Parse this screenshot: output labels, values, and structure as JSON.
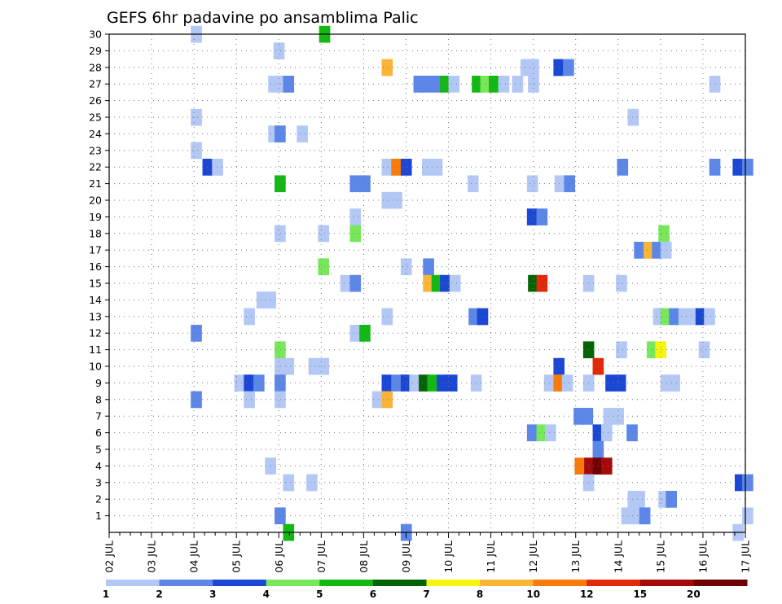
{
  "chart_data": {
    "type": "heatmap",
    "title": "GEFS 6hr padavine po ansamblima Palic",
    "xlabel": "",
    "ylabel": "",
    "x_ticks": [
      "02 JUL",
      "03 JUL",
      "04 JUL",
      "05 JUL",
      "06 JUL",
      "07 JUL",
      "08 JUL",
      "09 JUL",
      "10 JUL",
      "11 JUL",
      "12 JUL",
      "13 JUL",
      "14 JUL",
      "15 JUL",
      "16 JUL",
      "17 JUL"
    ],
    "y_ticks": [
      "1",
      "2",
      "3",
      "4",
      "5",
      "6",
      "7",
      "8",
      "9",
      "10",
      "11",
      "12",
      "13",
      "14",
      "15",
      "16",
      "17",
      "18",
      "19",
      "20",
      "21",
      "22",
      "23",
      "24",
      "25",
      "26",
      "27",
      "28",
      "29",
      "30"
    ],
    "xlim": [
      0,
      60
    ],
    "ylim": [
      0,
      30
    ],
    "x_step_hours": 6,
    "y_unit": "ensemble member",
    "grid": true,
    "legend_placement": "bottom",
    "colorbar": {
      "labels": [
        "1",
        "2",
        "3",
        "4",
        "5",
        "6",
        "7",
        "8",
        "10",
        "12",
        "15",
        "20"
      ],
      "colors": [
        "#b3c8f5",
        "#5c86e8",
        "#1a48d4",
        "#78e85a",
        "#14b814",
        "#046404",
        "#f5f50e",
        "#fab437",
        "#fa7a0a",
        "#e02a0a",
        "#a50a0a",
        "#6e0000"
      ]
    },
    "cells": [
      {
        "x": 7.7,
        "y": 30,
        "v": 1
      },
      {
        "x": 19.8,
        "y": 30,
        "v": 5
      },
      {
        "x": 15.5,
        "y": 29,
        "v": 1
      },
      {
        "x": 25.7,
        "y": 28,
        "v": 8
      },
      {
        "x": 38.8,
        "y": 28,
        "v": 1
      },
      {
        "x": 39.5,
        "y": 28,
        "v": 1
      },
      {
        "x": 41.9,
        "y": 28,
        "v": 3
      },
      {
        "x": 42.8,
        "y": 28,
        "v": 2
      },
      {
        "x": 15,
        "y": 27,
        "v": 1
      },
      {
        "x": 15.8,
        "y": 27,
        "v": 1
      },
      {
        "x": 16.4,
        "y": 27,
        "v": 2
      },
      {
        "x": 28.7,
        "y": 27,
        "v": 2
      },
      {
        "x": 29.5,
        "y": 27,
        "v": 2
      },
      {
        "x": 30.4,
        "y": 27,
        "v": 2
      },
      {
        "x": 31.2,
        "y": 27,
        "v": 5
      },
      {
        "x": 32,
        "y": 27,
        "v": 1
      },
      {
        "x": 34.2,
        "y": 27,
        "v": 5
      },
      {
        "x": 35,
        "y": 27,
        "v": 4
      },
      {
        "x": 35.8,
        "y": 27,
        "v": 5
      },
      {
        "x": 36.7,
        "y": 27,
        "v": 1
      },
      {
        "x": 38,
        "y": 27,
        "v": 1
      },
      {
        "x": 39.5,
        "y": 27,
        "v": 1
      },
      {
        "x": 56.6,
        "y": 27,
        "v": 1
      },
      {
        "x": 7.7,
        "y": 25,
        "v": 1
      },
      {
        "x": 48.9,
        "y": 25,
        "v": 1
      },
      {
        "x": 15,
        "y": 24,
        "v": 1
      },
      {
        "x": 15.6,
        "y": 24,
        "v": 2
      },
      {
        "x": 17.7,
        "y": 24,
        "v": 1
      },
      {
        "x": 7.7,
        "y": 23,
        "v": 1
      },
      {
        "x": 8.8,
        "y": 22,
        "v": 3
      },
      {
        "x": 9.7,
        "y": 22,
        "v": 1
      },
      {
        "x": 25.7,
        "y": 22,
        "v": 1
      },
      {
        "x": 26.6,
        "y": 22,
        "v": 11
      },
      {
        "x": 27.5,
        "y": 22,
        "v": 3
      },
      {
        "x": 29.5,
        "y": 22,
        "v": 1
      },
      {
        "x": 30.4,
        "y": 22,
        "v": 1
      },
      {
        "x": 47.9,
        "y": 22,
        "v": 2
      },
      {
        "x": 56.6,
        "y": 22,
        "v": 2
      },
      {
        "x": 58.8,
        "y": 22,
        "v": 3
      },
      {
        "x": 59.7,
        "y": 22,
        "v": 2
      },
      {
        "x": 15.6,
        "y": 21,
        "v": 5
      },
      {
        "x": 22.7,
        "y": 21,
        "v": 2
      },
      {
        "x": 23.6,
        "y": 21,
        "v": 2
      },
      {
        "x": 33.8,
        "y": 21,
        "v": 1
      },
      {
        "x": 39.4,
        "y": 21,
        "v": 1
      },
      {
        "x": 42,
        "y": 21,
        "v": 1
      },
      {
        "x": 42.9,
        "y": 21,
        "v": 2
      },
      {
        "x": 25.7,
        "y": 20,
        "v": 1
      },
      {
        "x": 26.6,
        "y": 20,
        "v": 1
      },
      {
        "x": 22.7,
        "y": 19,
        "v": 1
      },
      {
        "x": 39.4,
        "y": 19,
        "v": 3
      },
      {
        "x": 40.3,
        "y": 19,
        "v": 2
      },
      {
        "x": 15.6,
        "y": 18,
        "v": 1
      },
      {
        "x": 19.7,
        "y": 18,
        "v": 1
      },
      {
        "x": 22.7,
        "y": 18,
        "v": 4
      },
      {
        "x": 51.8,
        "y": 18,
        "v": 4
      },
      {
        "x": 49.5,
        "y": 17,
        "v": 2
      },
      {
        "x": 50.4,
        "y": 17,
        "v": 9
      },
      {
        "x": 51.2,
        "y": 17,
        "v": 2
      },
      {
        "x": 52,
        "y": 17,
        "v": 1
      },
      {
        "x": 19.7,
        "y": 16,
        "v": 4
      },
      {
        "x": 27.5,
        "y": 16,
        "v": 1
      },
      {
        "x": 29.6,
        "y": 16,
        "v": 2
      },
      {
        "x": 21.8,
        "y": 15,
        "v": 1
      },
      {
        "x": 22.7,
        "y": 15,
        "v": 2
      },
      {
        "x": 29.6,
        "y": 15,
        "v": 8
      },
      {
        "x": 30.4,
        "y": 15,
        "v": 5
      },
      {
        "x": 31.2,
        "y": 15,
        "v": 3
      },
      {
        "x": 32.1,
        "y": 15,
        "v": 1
      },
      {
        "x": 39.5,
        "y": 15,
        "v": 6
      },
      {
        "x": 40.3,
        "y": 15,
        "v": 12
      },
      {
        "x": 44.7,
        "y": 15,
        "v": 1
      },
      {
        "x": 47.8,
        "y": 15,
        "v": 1
      },
      {
        "x": 13.9,
        "y": 14,
        "v": 1
      },
      {
        "x": 14.7,
        "y": 14,
        "v": 1
      },
      {
        "x": 12.7,
        "y": 13,
        "v": 1
      },
      {
        "x": 25.7,
        "y": 13,
        "v": 1
      },
      {
        "x": 33.9,
        "y": 13,
        "v": 2
      },
      {
        "x": 34.7,
        "y": 13,
        "v": 3
      },
      {
        "x": 51.3,
        "y": 13,
        "v": 1
      },
      {
        "x": 52,
        "y": 13,
        "v": 4
      },
      {
        "x": 52.8,
        "y": 13,
        "v": 2
      },
      {
        "x": 53.7,
        "y": 13,
        "v": 1
      },
      {
        "x": 54.5,
        "y": 13,
        "v": 1
      },
      {
        "x": 55.3,
        "y": 13,
        "v": 3
      },
      {
        "x": 56.1,
        "y": 13,
        "v": 1
      },
      {
        "x": 7.7,
        "y": 12,
        "v": 2
      },
      {
        "x": 22.7,
        "y": 12,
        "v": 1
      },
      {
        "x": 23.6,
        "y": 12,
        "v": 5
      },
      {
        "x": 15.6,
        "y": 11,
        "v": 4
      },
      {
        "x": 44.7,
        "y": 11,
        "v": 6
      },
      {
        "x": 47.8,
        "y": 11,
        "v": 1
      },
      {
        "x": 50.7,
        "y": 11,
        "v": 4
      },
      {
        "x": 51.5,
        "y": 11,
        "v": 7
      },
      {
        "x": 55.6,
        "y": 11,
        "v": 1
      },
      {
        "x": 15.6,
        "y": 10,
        "v": 1
      },
      {
        "x": 16.4,
        "y": 10,
        "v": 1
      },
      {
        "x": 18.8,
        "y": 10,
        "v": 1
      },
      {
        "x": 19.7,
        "y": 10,
        "v": 1
      },
      {
        "x": 41.9,
        "y": 10,
        "v": 3
      },
      {
        "x": 45.6,
        "y": 10,
        "v": 12
      },
      {
        "x": 11.8,
        "y": 9,
        "v": 1
      },
      {
        "x": 12.7,
        "y": 9,
        "v": 3
      },
      {
        "x": 13.6,
        "y": 9,
        "v": 2
      },
      {
        "x": 15.6,
        "y": 9,
        "v": 2
      },
      {
        "x": 25.7,
        "y": 9,
        "v": 3
      },
      {
        "x": 26.6,
        "y": 9,
        "v": 2
      },
      {
        "x": 27.5,
        "y": 9,
        "v": 3
      },
      {
        "x": 28.3,
        "y": 9,
        "v": 1
      },
      {
        "x": 29.2,
        "y": 9,
        "v": 6
      },
      {
        "x": 30,
        "y": 9,
        "v": 5
      },
      {
        "x": 30.9,
        "y": 9,
        "v": 3
      },
      {
        "x": 31.8,
        "y": 9,
        "v": 3
      },
      {
        "x": 34.1,
        "y": 9,
        "v": 1
      },
      {
        "x": 41,
        "y": 9,
        "v": 1
      },
      {
        "x": 41.9,
        "y": 9,
        "v": 11
      },
      {
        "x": 42.7,
        "y": 9,
        "v": 1
      },
      {
        "x": 44.7,
        "y": 9,
        "v": 1
      },
      {
        "x": 46.8,
        "y": 9,
        "v": 3
      },
      {
        "x": 47.7,
        "y": 9,
        "v": 3
      },
      {
        "x": 52,
        "y": 9,
        "v": 1
      },
      {
        "x": 52.8,
        "y": 9,
        "v": 1
      },
      {
        "x": 7.7,
        "y": 8,
        "v": 2
      },
      {
        "x": 12.7,
        "y": 8,
        "v": 1
      },
      {
        "x": 15.6,
        "y": 8,
        "v": 1
      },
      {
        "x": 24.8,
        "y": 8,
        "v": 1
      },
      {
        "x": 25.7,
        "y": 8,
        "v": 8
      },
      {
        "x": 43.8,
        "y": 7,
        "v": 2
      },
      {
        "x": 44.6,
        "y": 7,
        "v": 2
      },
      {
        "x": 46.6,
        "y": 7,
        "v": 1
      },
      {
        "x": 47.5,
        "y": 7,
        "v": 1
      },
      {
        "x": 39.4,
        "y": 6,
        "v": 2
      },
      {
        "x": 40.3,
        "y": 6,
        "v": 4
      },
      {
        "x": 41.1,
        "y": 6,
        "v": 1
      },
      {
        "x": 45.6,
        "y": 6,
        "v": 3
      },
      {
        "x": 46.4,
        "y": 6,
        "v": 1
      },
      {
        "x": 48.8,
        "y": 6,
        "v": 2
      },
      {
        "x": 45.6,
        "y": 5,
        "v": 2
      },
      {
        "x": 14.7,
        "y": 4,
        "v": 1
      },
      {
        "x": 43.9,
        "y": 4,
        "v": 10
      },
      {
        "x": 44.8,
        "y": 4,
        "v": 15
      },
      {
        "x": 45.6,
        "y": 4,
        "v": 20
      },
      {
        "x": 46.4,
        "y": 4,
        "v": 15
      },
      {
        "x": 16.4,
        "y": 3,
        "v": 1
      },
      {
        "x": 18.6,
        "y": 3,
        "v": 1
      },
      {
        "x": 44.7,
        "y": 3,
        "v": 1
      },
      {
        "x": 59,
        "y": 3,
        "v": 3
      },
      {
        "x": 59.7,
        "y": 3,
        "v": 2
      },
      {
        "x": 48.9,
        "y": 2,
        "v": 1
      },
      {
        "x": 49.5,
        "y": 2,
        "v": 1
      },
      {
        "x": 51.8,
        "y": 2,
        "v": 1
      },
      {
        "x": 52.5,
        "y": 2,
        "v": 2
      },
      {
        "x": 15.6,
        "y": 1,
        "v": 2
      },
      {
        "x": 48.3,
        "y": 1,
        "v": 1
      },
      {
        "x": 49.2,
        "y": 1,
        "v": 1
      },
      {
        "x": 50,
        "y": 1,
        "v": 2
      },
      {
        "x": 59.7,
        "y": 1,
        "v": 1
      },
      {
        "x": 16.4,
        "y": 0,
        "v": 5
      },
      {
        "x": 27.5,
        "y": 0,
        "v": 2
      },
      {
        "x": 58.8,
        "y": 0,
        "v": 1
      }
    ]
  }
}
